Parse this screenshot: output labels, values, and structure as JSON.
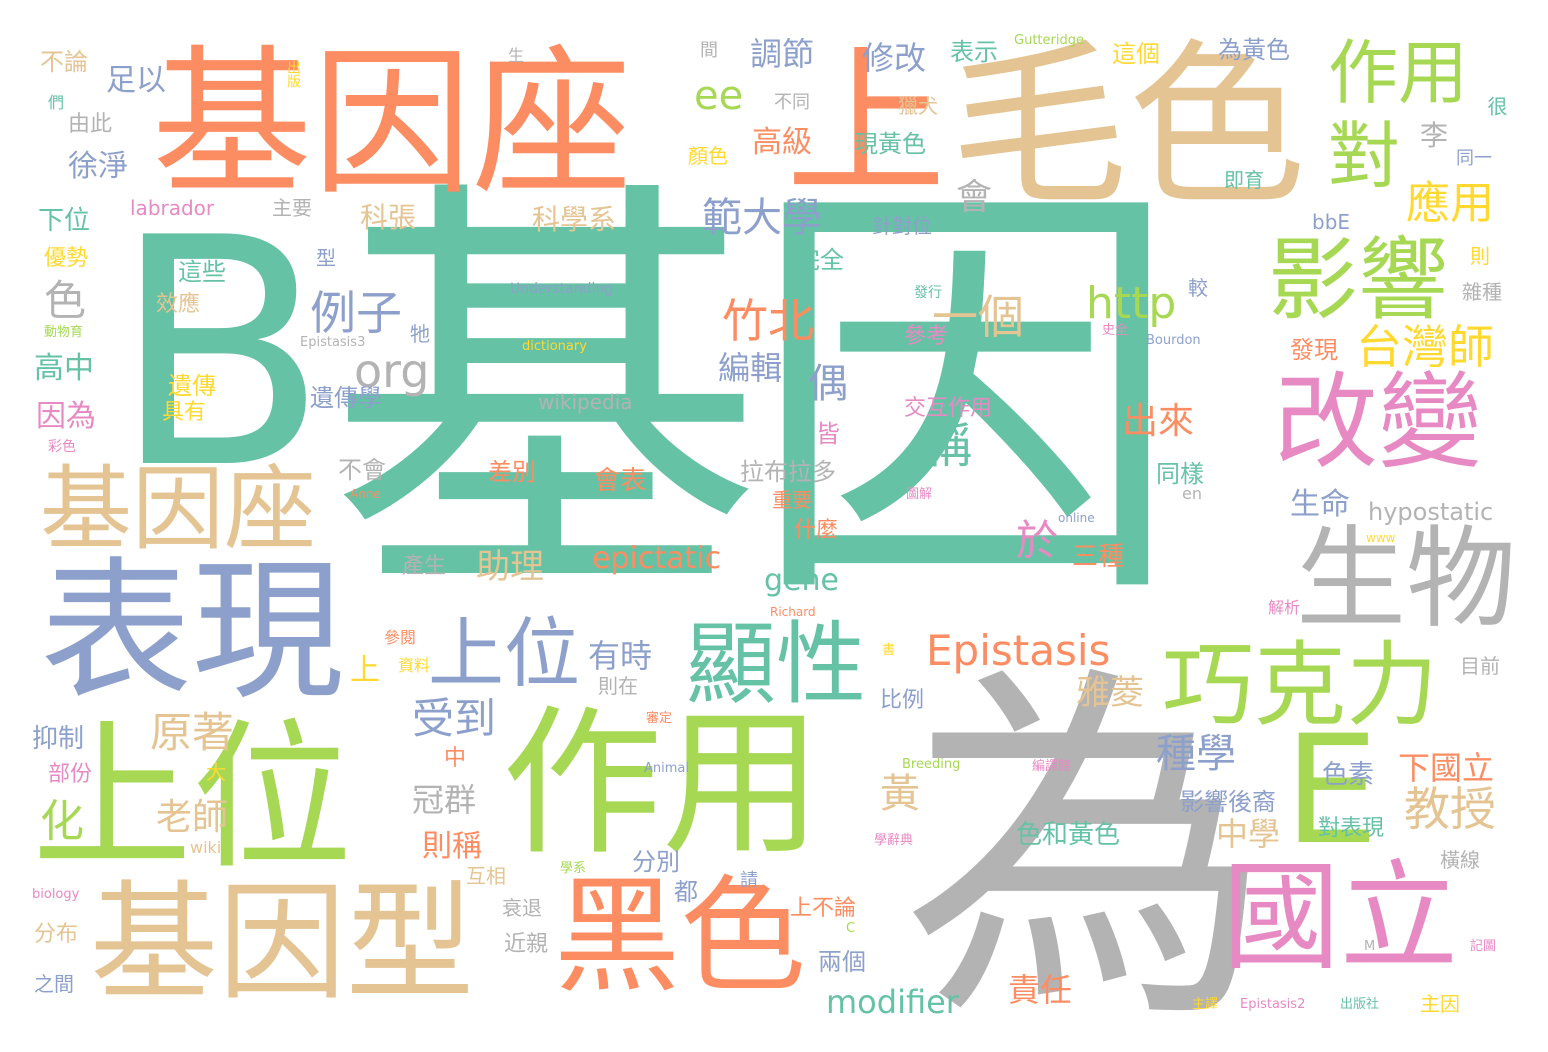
{
  "palette": {
    "teal": "#66c2a5",
    "orange": "#fc8d62",
    "blue": "#8da0cb",
    "pink": "#e78ac3",
    "green": "#a6d854",
    "yellow": "#ffd92f",
    "tan": "#e5c494",
    "gray": "#b3b3b3"
  },
  "words": [
    "B",
    "基因",
    "為",
    "毛色",
    "基因座",
    "上",
    "表現",
    "上位",
    "作用",
    "基因型",
    "黑色",
    "國立",
    "E",
    "生物",
    "改變",
    "影響",
    "巧克力",
    "顯性",
    "作用",
    "對",
    "基因座",
    "上位",
    "Epistasis",
    "範大學",
    "http",
    "org",
    "例子",
    "竹北",
    "台灣師",
    "應用",
    "modifier",
    "epictatic",
    "gene",
    "hypostatic",
    "ee",
    "教授",
    "一個",
    "稱",
    "於",
    "出來",
    "受到",
    "原著",
    "老師",
    "化",
    "黃",
    "雅菱",
    "責任",
    "種學",
    "中學",
    "下國立",
    "色素",
    "影響後裔",
    "對表現",
    "色和黃色",
    "助理",
    "有時",
    "冠群",
    "則稱",
    "偶",
    "會",
    "編輯",
    "修改",
    "調節",
    "足以",
    "高級",
    "科張",
    "科學系",
    "色",
    "高中",
    "因為",
    "徐淨",
    "由此",
    "下位",
    "優勢",
    "表示",
    "為黃色",
    "這個",
    "李",
    "即育",
    "bbE",
    "則",
    "雜種",
    "較",
    "發現",
    "生命",
    "同樣",
    "三種",
    "會表",
    "差別",
    "拉布拉多",
    "重要",
    "什麼",
    "皆",
    "不會",
    "遺傳學",
    "遺傳",
    "具有",
    "效應",
    "這些",
    "型",
    "完全",
    "labrador",
    "主要",
    "針對位",
    "顏色",
    "現黃色",
    "不同",
    "獵犬",
    "交互作用",
    "參考",
    "發行",
    "產生",
    "牠",
    "上",
    "資料",
    "參閱",
    "比例",
    "則在",
    "分別",
    "互相",
    "都",
    "衰退",
    "近親",
    "上不論",
    "兩個",
    "中",
    "大",
    "部份",
    "抑制",
    "分布",
    "之間",
    "wiki",
    "biology",
    "Animal",
    "Breeding",
    "Richard",
    "Anne",
    "online",
    "www",
    "en",
    "Bourdon",
    "Understanding",
    "dictionary",
    "wikipedia",
    "Epistasis3",
    "Epistasis2",
    "Gutteridge",
    "動物育",
    "彩色",
    "不論",
    "們",
    "出版",
    "生",
    "間",
    "很",
    "同一",
    "解析",
    "目前",
    "橫線",
    "主因",
    "記圖",
    "主譯",
    "出版社",
    "請",
    "書",
    "審定",
    "學辭典",
    "學系",
    "圖解",
    "編譯館",
    "史全",
    "M",
    "C"
  ]
}
